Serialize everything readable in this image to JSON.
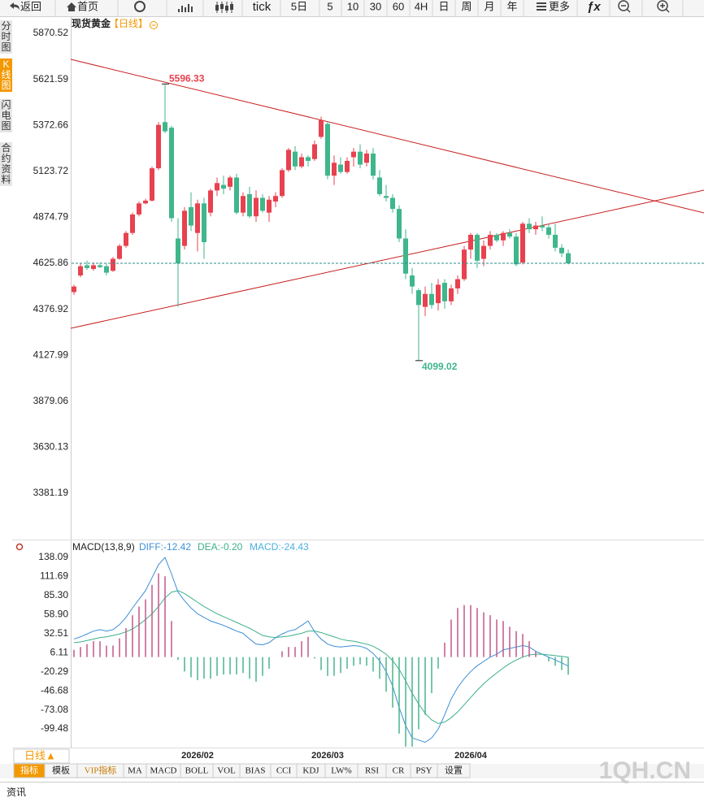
{
  "toolbar": {
    "items": [
      "返回",
      "首页",
      "tick",
      "5日",
      "5",
      "10",
      "30",
      "60",
      "4H",
      "日",
      "周",
      "月",
      "年",
      "更多"
    ]
  },
  "sidebar": {
    "tabs": [
      "分时图",
      "K线图",
      "闪电图",
      "合约资料"
    ]
  },
  "chart_data": [
    {
      "type": "candlestick",
      "title": "现货黄金",
      "subtitle": "【日线】",
      "up_color": "#e8414f",
      "down_color": "#3fb68b",
      "categories": [
        null,
        null,
        null,
        null,
        null,
        null,
        null,
        null,
        null,
        null,
        null,
        null,
        null,
        null,
        null,
        null,
        null,
        null,
        null,
        "2026/02",
        null,
        null,
        null,
        null,
        null,
        null,
        null,
        null,
        null,
        null,
        null,
        null,
        null,
        null,
        null,
        null,
        null,
        null,
        null,
        "2026/03",
        null,
        null,
        null,
        null,
        null,
        null,
        null,
        null,
        null,
        null,
        null,
        null,
        null,
        null,
        null,
        null,
        null,
        null,
        null,
        null,
        null,
        "2026/04",
        null,
        null,
        null,
        null,
        null,
        null,
        null,
        null,
        null,
        null,
        null,
        null,
        null,
        null,
        null
      ],
      "ohlc": [
        [
          4470,
          4510,
          4455,
          4500
        ],
        [
          4560,
          4625,
          4550,
          4610
        ],
        [
          4615,
          4640,
          4590,
          4600
        ],
        [
          4595,
          4630,
          4585,
          4615
        ],
        [
          4615,
          4630,
          4600,
          4605
        ],
        [
          4610,
          4625,
          4560,
          4575
        ],
        [
          4585,
          4660,
          4580,
          4650
        ],
        [
          4650,
          4730,
          4645,
          4720
        ],
        [
          4720,
          4800,
          4710,
          4790
        ],
        [
          4790,
          4900,
          4780,
          4890
        ],
        [
          4890,
          4960,
          4880,
          4950
        ],
        [
          4950,
          4975,
          4945,
          4965
        ],
        [
          4965,
          5150,
          4960,
          5140
        ],
        [
          5140,
          5390,
          5130,
          5375
        ],
        [
          5390,
          5596.33,
          5330,
          5340
        ],
        [
          5360,
          5370,
          4850,
          4870
        ],
        [
          4760,
          4870,
          4390,
          4625
        ],
        [
          4720,
          4930,
          4700,
          4910
        ],
        [
          4930,
          5010,
          4800,
          4830
        ],
        [
          4790,
          4970,
          4690,
          4950
        ],
        [
          4950,
          4980,
          4650,
          4740
        ],
        [
          4900,
          5030,
          4880,
          5020
        ],
        [
          5020,
          5090,
          4990,
          5060
        ],
        [
          5050,
          5100,
          5000,
          5030
        ],
        [
          5040,
          5100,
          5020,
          5090
        ],
        [
          5090,
          5110,
          4890,
          4900
        ],
        [
          4900,
          5010,
          4880,
          4990
        ],
        [
          5000,
          5040,
          4870,
          4880
        ],
        [
          4880,
          5020,
          4850,
          4980
        ],
        [
          4980,
          5000,
          4900,
          4910
        ],
        [
          4900,
          4990,
          4850,
          4970
        ],
        [
          4960,
          5010,
          4930,
          4990
        ],
        [
          4990,
          5140,
          4980,
          5130
        ],
        [
          5130,
          5250,
          5120,
          5240
        ],
        [
          5230,
          5260,
          5130,
          5150
        ],
        [
          5150,
          5220,
          5140,
          5200
        ],
        [
          5200,
          5210,
          5150,
          5180
        ],
        [
          5190,
          5290,
          5180,
          5270
        ],
        [
          5310,
          5420,
          5300,
          5400
        ],
        [
          5380,
          5390,
          5080,
          5100
        ],
        [
          5100,
          5210,
          5050,
          5170
        ],
        [
          5160,
          5200,
          5110,
          5120
        ],
        [
          5120,
          5200,
          5110,
          5180
        ],
        [
          5200,
          5250,
          5150,
          5230
        ],
        [
          5230,
          5270,
          5140,
          5160
        ],
        [
          5170,
          5240,
          5150,
          5220
        ],
        [
          5220,
          5250,
          5080,
          5100
        ],
        [
          5090,
          5130,
          4990,
          5000
        ],
        [
          4990,
          5050,
          4960,
          4980
        ],
        [
          4980,
          5000,
          4900,
          4920
        ],
        [
          4920,
          4940,
          4740,
          4760
        ],
        [
          4760,
          4810,
          4540,
          4570
        ],
        [
          4560,
          4600,
          4460,
          4500
        ],
        [
          4480,
          4490,
          4099.02,
          4400
        ],
        [
          4390,
          4500,
          4340,
          4460
        ],
        [
          4460,
          4520,
          4380,
          4400
        ],
        [
          4410,
          4540,
          4370,
          4510
        ],
        [
          4520,
          4540,
          4380,
          4420
        ],
        [
          4420,
          4510,
          4400,
          4490
        ],
        [
          4490,
          4560,
          4460,
          4540
        ],
        [
          4540,
          4720,
          4530,
          4700
        ],
        [
          4700,
          4790,
          4650,
          4780
        ],
        [
          4780,
          4790,
          4600,
          4640
        ],
        [
          4650,
          4750,
          4610,
          4720
        ],
        [
          4720,
          4800,
          4700,
          4780
        ],
        [
          4780,
          4790,
          4740,
          4750
        ],
        [
          4750,
          4800,
          4720,
          4790
        ],
        [
          4790,
          4810,
          4760,
          4770
        ],
        [
          4770,
          4790,
          4610,
          4620
        ],
        [
          4630,
          4850,
          4620,
          4840
        ],
        [
          4840,
          4870,
          4790,
          4810
        ],
        [
          4810,
          4850,
          4780,
          4830
        ],
        [
          4830,
          4880,
          4800,
          4820
        ],
        [
          4820,
          4840,
          4760,
          4780
        ],
        [
          4780,
          4840,
          4690,
          4710
        ],
        [
          4710,
          4730,
          4660,
          4680
        ],
        [
          4680,
          4700,
          4620,
          4625.86
        ]
      ],
      "ylim": [
        3139.4,
        5954.1
      ],
      "yticks": [
        5870.52,
        5621.59,
        5372.66,
        5123.72,
        4874.79,
        4625.86,
        4376.92,
        4127.99,
        3879.06,
        3630.13,
        3381.19
      ],
      "last_price_line": true
    },
    {
      "type": "macd",
      "title": "MACD(13,8,9)",
      "ylim": [
        -142.2,
        161.7
      ],
      "yticks": [
        138.09,
        111.69,
        {
          "value": 85.3,
          "label": "85.30"
        },
        {
          "value": 58.9,
          "label": "58.90"
        },
        32.51,
        6.11,
        -20.29,
        -46.68,
        -73.08,
        -99.48
      ],
      "series": [
        {
          "name": "DIFF:-12.42",
          "color": "#3d8fd6",
          "kind": "line",
          "values": [
            25,
            28,
            32,
            36,
            38,
            36,
            38,
            45,
            55,
            68,
            80,
            92,
            110,
            128,
            138,
            115,
            90,
            78,
            68,
            60,
            55,
            50,
            47,
            44,
            40,
            36,
            33,
            25,
            18,
            17,
            20,
            27,
            32,
            36,
            38,
            44,
            50,
            35,
            25,
            18,
            15,
            14,
            15,
            16,
            15,
            12,
            5,
            -5,
            -20,
            -40,
            -70,
            -95,
            -112,
            -115,
            -118,
            -112,
            -100,
            -80,
            -58,
            -42,
            -30,
            -20,
            -12,
            -6,
            0,
            4,
            10,
            12,
            14,
            16,
            14,
            8,
            4,
            0,
            -4,
            -8,
            -12.42
          ]
        },
        {
          "name": "DEA:-0.20",
          "color": "#3cb08a",
          "kind": "line",
          "values": [
            20,
            21,
            23,
            25,
            27,
            28,
            30,
            32,
            35,
            39,
            45,
            52,
            60,
            70,
            82,
            90,
            92,
            88,
            82,
            76,
            70,
            65,
            60,
            56,
            52,
            48,
            44,
            40,
            35,
            30,
            28,
            27,
            28,
            29,
            31,
            33,
            36,
            36,
            34,
            31,
            28,
            25,
            23,
            22,
            20,
            18,
            15,
            10,
            4,
            -5,
            -17,
            -33,
            -50,
            -65,
            -78,
            -87,
            -92,
            -90,
            -84,
            -76,
            -66,
            -56,
            -46,
            -37,
            -29,
            -22,
            -15,
            -9,
            -4,
            0,
            3,
            4,
            4,
            3,
            2,
            1,
            -0.2
          ]
        },
        {
          "name": "MACD:-24.43",
          "color": "#4ab0e0",
          "kind": "histogram",
          "up_color": "#c2578a",
          "down_color": "#49b48c",
          "values": [
            10,
            14,
            18,
            22,
            22,
            16,
            16,
            26,
            40,
            58,
            70,
            80,
            100,
            116,
            112,
            50,
            -4,
            -20,
            -28,
            -32,
            -30,
            -30,
            -26,
            -24,
            -24,
            -24,
            -22,
            -30,
            -34,
            -26,
            -16,
            0,
            8,
            14,
            14,
            22,
            28,
            -2,
            -18,
            -26,
            -26,
            -22,
            -16,
            -12,
            -10,
            -12,
            -20,
            -30,
            -48,
            -70,
            -106,
            -124,
            -124,
            -100,
            -80,
            -50,
            -16,
            20,
            52,
            68,
            72,
            72,
            68,
            62,
            58,
            52,
            50,
            42,
            36,
            32,
            22,
            8,
            0,
            -6,
            -12,
            -18,
            -24.43
          ]
        }
      ]
    }
  ],
  "bottom_bar": {
    "period": "日线▲",
    "tabs": [
      "指标",
      "模板",
      "VIP指标",
      "MA",
      "MACD",
      "BOLL",
      "VOL",
      "BIAS",
      "CCI",
      "KDJ",
      "LW%",
      "RSI",
      "CR",
      "PSY",
      "设置"
    ]
  },
  "footer": "资讯",
  "watermark": "1QH.CN"
}
